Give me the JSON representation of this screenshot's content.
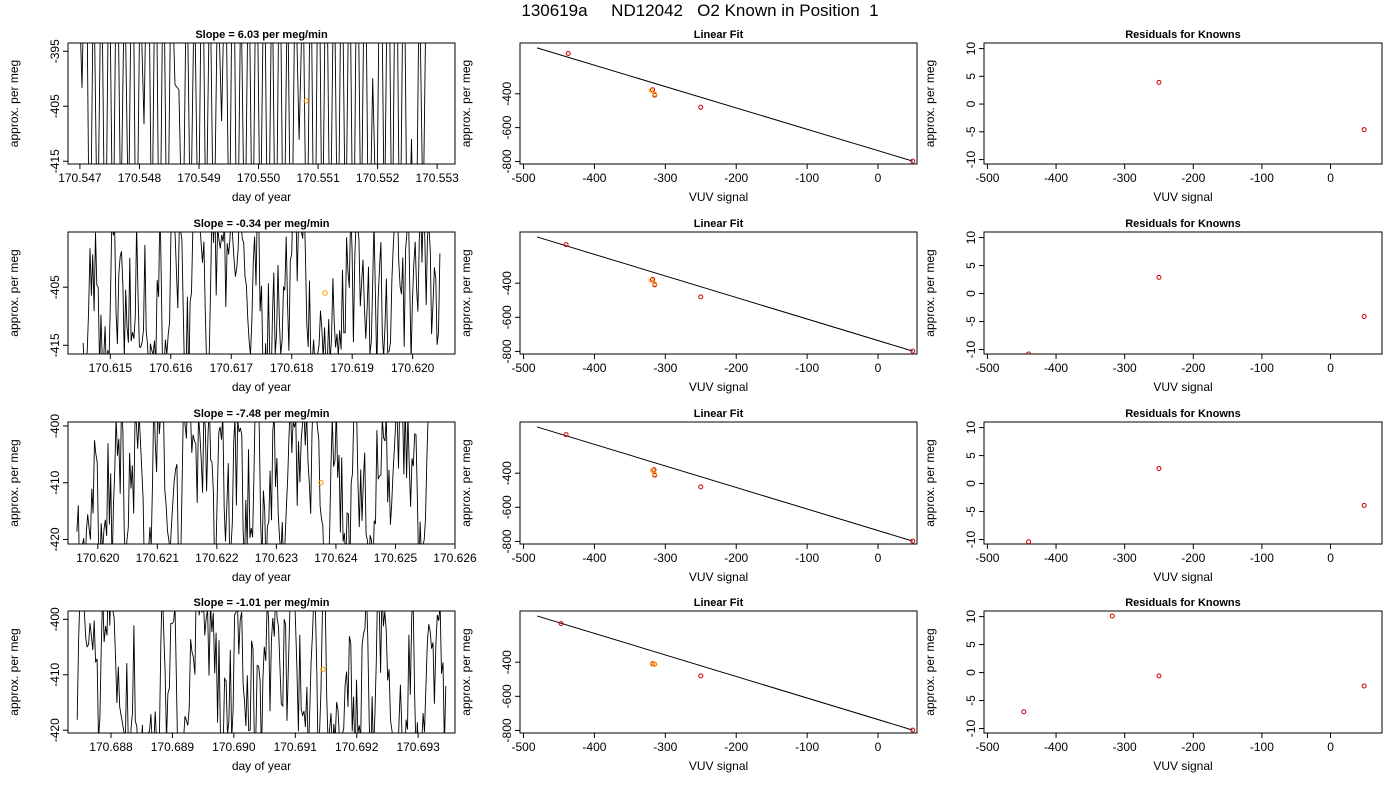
{
  "figure": {
    "suptitle": "130619a     ND12042   O2 Known in Position  1"
  },
  "colors": {
    "line": "#000000",
    "points": "#cc0000",
    "highlight": "#ff9900",
    "grid_axis": "#000000"
  },
  "chart_data": [
    {
      "type": "line",
      "row": 0,
      "col": 0,
      "title": "Slope =  6.03  per meg/min",
      "xlabel": "day of year",
      "ylabel": "approx. per meg",
      "xlim": [
        170.5468,
        170.5533
      ],
      "ylim": [
        -415.5,
        -393.5
      ],
      "xticks": [
        170.547,
        170.548,
        170.549,
        170.55,
        170.551,
        170.552,
        170.553
      ],
      "xticklabels": [
        "170.547",
        "170.548",
        "170.549",
        "170.550",
        "170.551",
        "170.552",
        "170.553"
      ],
      "yticks": [
        -395,
        -405,
        -415
      ],
      "yticklabels": [
        "-395",
        "-405",
        "-415"
      ],
      "trace_range": [
        170.54697,
        170.55283
      ],
      "trace_style": "spikes",
      "trace_seed": 11,
      "highlight_point": {
        "x": 170.5508,
        "y": -404
      }
    },
    {
      "type": "line",
      "row": 1,
      "col": 0,
      "title": "Slope =  -0.34  per meg/min",
      "xlabel": "day of year",
      "ylabel": "approx. per meg",
      "xlim": [
        170.6143,
        170.6207
      ],
      "ylim": [
        -416.5,
        -395.5
      ],
      "xticks": [
        170.615,
        170.616,
        170.617,
        170.618,
        170.619,
        170.62
      ],
      "xticklabels": [
        "170.615",
        "170.616",
        "170.617",
        "170.618",
        "170.619",
        "170.620"
      ],
      "yticks": [
        -405,
        -415
      ],
      "yticklabels": [
        "-405",
        "-415"
      ],
      "trace_range": [
        170.61455,
        170.62045
      ],
      "trace_style": "wiggle",
      "trace_seed": 23,
      "highlight_point": {
        "x": 170.61855,
        "y": -406
      }
    },
    {
      "type": "line",
      "row": 2,
      "col": 0,
      "title": "Slope =  -7.48  per meg/min",
      "xlabel": "day of year",
      "ylabel": "approx. per meg",
      "xlim": [
        170.6195,
        170.626
      ],
      "ylim": [
        -420.8,
        -399.3
      ],
      "xticks": [
        170.62,
        170.621,
        170.622,
        170.623,
        170.624,
        170.625,
        170.626
      ],
      "xticklabels": [
        "170.620",
        "170.621",
        "170.622",
        "170.623",
        "170.624",
        "170.625",
        "170.626"
      ],
      "yticks": [
        -400,
        -410,
        -420
      ],
      "yticklabels": [
        "-400",
        "-410",
        "-420"
      ],
      "trace_range": [
        170.61965,
        170.62555
      ],
      "trace_style": "wiggle",
      "trace_seed": 37,
      "highlight_point": {
        "x": 170.62375,
        "y": -410
      }
    },
    {
      "type": "line",
      "row": 3,
      "col": 0,
      "title": "Slope =  -1.01  per meg/min",
      "xlabel": "day of year",
      "ylabel": "approx. per meg",
      "xlim": [
        170.6873,
        170.6936
      ],
      "ylim": [
        -420.5,
        -398.5
      ],
      "xticks": [
        170.688,
        170.689,
        170.69,
        170.691,
        170.692,
        170.693
      ],
      "xticklabels": [
        "170.688",
        "170.689",
        "170.690",
        "170.691",
        "170.692",
        "170.693"
      ],
      "yticks": [
        -400,
        -410,
        -420
      ],
      "yticklabels": [
        "-400",
        "-410",
        "-420"
      ],
      "trace_range": [
        170.68745,
        170.69345
      ],
      "trace_style": "wiggle",
      "trace_seed": 51,
      "highlight_point": {
        "x": 170.69145,
        "y": -409
      }
    },
    {
      "type": "scatter",
      "row": 0,
      "col": 1,
      "title": "Linear Fit",
      "xlabel": "VUV signal",
      "ylabel": "approx. per meg",
      "xlim": [
        -505,
        55
      ],
      "ylim": [
        -815,
        -100
      ],
      "xticks": [
        -500,
        -400,
        -300,
        -200,
        -100,
        0
      ],
      "xticklabels": [
        "-500",
        "-400",
        "-300",
        "-200",
        "-100",
        "0"
      ],
      "yticks": [
        -400,
        -600,
        -800
      ],
      "yticklabels": [
        "-400",
        "-600",
        "-800"
      ],
      "points": [
        {
          "x": -437,
          "y": -162
        },
        {
          "x": -318,
          "y": -376
        },
        {
          "x": -315,
          "y": -408
        },
        {
          "x": -250,
          "y": -480
        },
        {
          "x": 49,
          "y": -798
        }
      ],
      "highlight_points": [
        {
          "x": -320,
          "y": -380
        },
        {
          "x": -315,
          "y": -402
        }
      ],
      "fit_line": {
        "x": [
          -481,
          49
        ],
        "y": -798,
        "y0": -129
      }
    },
    {
      "type": "scatter",
      "row": 1,
      "col": 1,
      "title": "Linear Fit",
      "xlabel": "VUV signal",
      "ylabel": "approx. per meg",
      "xlim": [
        -505,
        55
      ],
      "ylim": [
        -815,
        -100
      ],
      "xticks": [
        -500,
        -400,
        -300,
        -200,
        -100,
        0
      ],
      "xticklabels": [
        "-500",
        "-400",
        "-300",
        "-200",
        "-100",
        "0"
      ],
      "yticks": [
        -400,
        -600,
        -800
      ],
      "yticklabels": [
        "-400",
        "-600",
        "-800"
      ],
      "points": [
        {
          "x": -440,
          "y": -174
        },
        {
          "x": -318,
          "y": -378
        },
        {
          "x": -315,
          "y": -410
        },
        {
          "x": -250,
          "y": -480
        },
        {
          "x": 49,
          "y": -798
        }
      ],
      "highlight_points": [
        {
          "x": -320,
          "y": -382
        },
        {
          "x": -315,
          "y": -404
        }
      ],
      "fit_line": {
        "x": [
          -481,
          49
        ],
        "y": -798,
        "y0": -129
      }
    },
    {
      "type": "scatter",
      "row": 2,
      "col": 1,
      "title": "Linear Fit",
      "xlabel": "VUV signal",
      "ylabel": "approx. per meg",
      "xlim": [
        -505,
        55
      ],
      "ylim": [
        -815,
        -100
      ],
      "xticks": [
        -500,
        -400,
        -300,
        -200,
        -100,
        0
      ],
      "xticklabels": [
        "-500",
        "-400",
        "-300",
        "-200",
        "-100",
        "0"
      ],
      "yticks": [
        -400,
        -600,
        -800
      ],
      "yticklabels": [
        "-400",
        "-600",
        "-800"
      ],
      "points": [
        {
          "x": -440,
          "y": -174
        },
        {
          "x": -316,
          "y": -380
        },
        {
          "x": -315,
          "y": -412
        },
        {
          "x": -250,
          "y": -480
        },
        {
          "x": 49,
          "y": -798
        }
      ],
      "highlight_points": [
        {
          "x": -318,
          "y": -384
        },
        {
          "x": -315,
          "y": -406
        }
      ],
      "fit_line": {
        "x": [
          -481,
          49
        ],
        "y": -798,
        "y0": -129
      }
    },
    {
      "type": "scatter",
      "row": 3,
      "col": 1,
      "title": "Linear Fit",
      "xlabel": "VUV signal",
      "ylabel": "approx. per meg",
      "xlim": [
        -505,
        55
      ],
      "ylim": [
        -815,
        -100
      ],
      "xticks": [
        -500,
        -400,
        -300,
        -200,
        -100,
        0
      ],
      "xticklabels": [
        "-500",
        "-400",
        "-300",
        "-200",
        "-100",
        "0"
      ],
      "yticks": [
        -400,
        -600,
        -800
      ],
      "yticklabels": [
        "-400",
        "-600",
        "-800"
      ],
      "points": [
        {
          "x": -447,
          "y": -174
        },
        {
          "x": -318,
          "y": -410
        },
        {
          "x": -315,
          "y": -412
        },
        {
          "x": -250,
          "y": -480
        },
        {
          "x": 49,
          "y": -798
        }
      ],
      "highlight_points": [
        {
          "x": -318,
          "y": -406
        },
        {
          "x": -315,
          "y": -412
        }
      ],
      "fit_line": {
        "x": [
          -481,
          49
        ],
        "y": -798,
        "y0": -129
      }
    },
    {
      "type": "scatter",
      "row": 0,
      "col": 2,
      "title": "Residuals for Knowns",
      "xlabel": "VUV signal",
      "ylabel": "approx. per meg",
      "xlim": [
        -505,
        75
      ],
      "ylim": [
        -10.8,
        11
      ],
      "xticks": [
        -500,
        -400,
        -300,
        -200,
        -100,
        0
      ],
      "xticklabels": [
        "-500",
        "-400",
        "-300",
        "-200",
        "-100",
        "0"
      ],
      "yticks": [
        10,
        5,
        0,
        -5,
        -10
      ],
      "yticklabels": [
        "10",
        "5",
        "0",
        "-5",
        "-10"
      ],
      "points": [
        {
          "x": -250,
          "y": 3.9
        },
        {
          "x": 49,
          "y": -4.6
        }
      ]
    },
    {
      "type": "scatter",
      "row": 1,
      "col": 2,
      "title": "Residuals for Knowns",
      "xlabel": "VUV signal",
      "ylabel": "approx. per meg",
      "xlim": [
        -505,
        75
      ],
      "ylim": [
        -10.8,
        11
      ],
      "xticks": [
        -500,
        -400,
        -300,
        -200,
        -100,
        0
      ],
      "xticklabels": [
        "-500",
        "-400",
        "-300",
        "-200",
        "-100",
        "0"
      ],
      "yticks": [
        10,
        5,
        0,
        -5,
        -10
      ],
      "yticklabels": [
        "10",
        "5",
        "0",
        "-5",
        "-10"
      ],
      "points": [
        {
          "x": -440,
          "y": -10.8
        },
        {
          "x": -250,
          "y": 2.9
        },
        {
          "x": 49,
          "y": -4.1
        }
      ]
    },
    {
      "type": "scatter",
      "row": 2,
      "col": 2,
      "title": "Residuals for Knowns",
      "xlabel": "VUV signal",
      "ylabel": "approx. per meg",
      "xlim": [
        -505,
        75
      ],
      "ylim": [
        -10.8,
        11
      ],
      "xticks": [
        -500,
        -400,
        -300,
        -200,
        -100,
        0
      ],
      "xticklabels": [
        "-500",
        "-400",
        "-300",
        "-200",
        "-100",
        "0"
      ],
      "yticks": [
        10,
        5,
        0,
        -5,
        -10
      ],
      "yticklabels": [
        "10",
        "5",
        "0",
        "-5",
        "-10"
      ],
      "points": [
        {
          "x": -440,
          "y": -10.4
        },
        {
          "x": -250,
          "y": 2.7
        },
        {
          "x": 49,
          "y": -3.9
        }
      ]
    },
    {
      "type": "scatter",
      "row": 3,
      "col": 2,
      "title": "Residuals for Knowns",
      "xlabel": "VUV signal",
      "ylabel": "approx. per meg",
      "xlim": [
        -505,
        75
      ],
      "ylim": [
        -10.8,
        11
      ],
      "xticks": [
        -500,
        -400,
        -300,
        -200,
        -100,
        0
      ],
      "xticklabels": [
        "-500",
        "-400",
        "-300",
        "-200",
        "-100",
        "0"
      ],
      "yticks": [
        10,
        5,
        0,
        -5,
        -10
      ],
      "yticklabels": [
        "10",
        "5",
        "0",
        "-5",
        "-10"
      ],
      "points": [
        {
          "x": -447,
          "y": -7.0
        },
        {
          "x": -318,
          "y": 10.1
        },
        {
          "x": -250,
          "y": -0.6
        },
        {
          "x": 49,
          "y": -2.4
        }
      ]
    }
  ]
}
